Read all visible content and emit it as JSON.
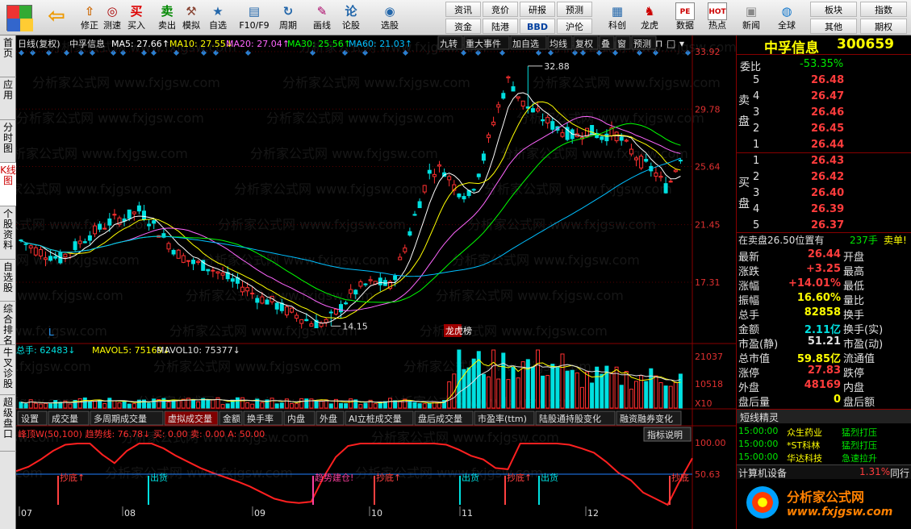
{
  "toolbar": {
    "buttons": [
      {
        "name": "back-icon",
        "label": ""
      },
      {
        "name": "modify-icon",
        "label": "修正"
      },
      {
        "name": "speed-icon",
        "label": "测速"
      },
      {
        "name": "buy-icon",
        "label": "买入",
        "glyph": "买"
      },
      {
        "name": "sell-icon",
        "label": "卖出",
        "glyph": "卖"
      },
      {
        "name": "simulate-icon",
        "label": "模拟"
      },
      {
        "name": "watchlist-icon",
        "label": "自选"
      },
      {
        "name": "f10-icon",
        "label": "F10/F9"
      },
      {
        "name": "period-icon",
        "label": "周期"
      },
      {
        "name": "drawline-icon",
        "label": "画线"
      },
      {
        "name": "discuss-icon",
        "label": "论股"
      },
      {
        "name": "picker-icon",
        "label": "选股"
      }
    ],
    "mini": [
      "资讯",
      "资金",
      "竞价",
      "陆港",
      "研报",
      "BBD",
      "预测",
      "沪伦"
    ],
    "right_buttons": [
      {
        "name": "tech-icon",
        "label": "科创"
      },
      {
        "name": "dragon-icon",
        "label": "龙虎"
      },
      {
        "name": "data-icon",
        "label": "数据",
        "glyph": "PE"
      },
      {
        "name": "hot-icon",
        "label": "热点",
        "glyph": "HOT"
      },
      {
        "name": "news-icon",
        "label": "新闻"
      },
      {
        "name": "global-icon",
        "label": "全球"
      }
    ],
    "far_right": [
      "板块",
      "其他",
      "指数",
      "期权"
    ]
  },
  "left_tabs": [
    "首页",
    "应用",
    "分时图",
    "K线图",
    "个股资料",
    "自选股",
    "综合排名",
    "牛叉诊股",
    "超级盘口"
  ],
  "chart_header": {
    "period": "日线(复权)",
    "stock": "中孚信息",
    "ma": [
      {
        "label": "MA5: 27.66↑",
        "color": "#ffffff"
      },
      {
        "label": "MA10: 27.55↓",
        "color": "#ffff00"
      },
      {
        "label": "MA20: 27.04↑",
        "color": "#ff66ff"
      },
      {
        "label": "MA30: 25.56↑",
        "color": "#00ff00"
      },
      {
        "label": "MA60: 21.03↑",
        "color": "#00bfff"
      }
    ],
    "tools": [
      "九转",
      "重大事件",
      "加自选",
      "均线",
      "复权",
      "叠",
      "窗",
      "预测"
    ]
  },
  "price_axis": [
    "33.92",
    "29.78",
    "25.64",
    "21.45",
    "17.31"
  ],
  "annotations": {
    "high": "32.88",
    "low": "14.15",
    "lhb": "龙虎榜",
    "l_mark": "L"
  },
  "vol_header": {
    "total": "总手: 62483↓",
    "mavol5": "MAVOL5: 75169↓",
    "mavol10": "MAVOL10: 75377↓"
  },
  "vol_axis": [
    "21037",
    "10518",
    "X10"
  ],
  "sub_tabs": [
    "设置",
    "成交量",
    "多周期成交量",
    "虚拟成交量",
    "金额",
    "换手率",
    "内盘",
    "外盘",
    "AI立桩成交量",
    "盘后成交量",
    "市盈率(ttm)",
    "陆股通持股变化",
    "融资融券变化"
  ],
  "indicator": {
    "header": "峰顶W(50,100) 趋势线: 76.78↓ 买: 0.00 卖: 0.00 A: 50.00",
    "button": "指标说明",
    "axis": [
      "100.00",
      "50.63"
    ],
    "labels": [
      "抄底↑",
      "出货",
      "趋势建仓!",
      "抄底↑",
      "出货",
      "抄底↑",
      "出货",
      "抄底"
    ]
  },
  "months": [
    "07",
    "08",
    "09",
    "10",
    "11",
    "12"
  ],
  "right_panel": {
    "name": "中孚信息",
    "code": "300659",
    "weibi_label": "委比",
    "weibi": "-53.35%",
    "sell_label": "卖盘",
    "buy_label": "买盘",
    "asks": [
      {
        "lvl": "5",
        "p": "26.48"
      },
      {
        "lvl": "4",
        "p": "26.47"
      },
      {
        "lvl": "3",
        "p": "26.46"
      },
      {
        "lvl": "2",
        "p": "26.45"
      },
      {
        "lvl": "1",
        "p": "26.44"
      }
    ],
    "bids": [
      {
        "lvl": "1",
        "p": "26.43"
      },
      {
        "lvl": "2",
        "p": "26.42"
      },
      {
        "lvl": "3",
        "p": "26.40"
      },
      {
        "lvl": "4",
        "p": "26.39"
      },
      {
        "lvl": "5",
        "p": "26.37"
      }
    ],
    "note_a": "在卖盘26.50位置有",
    "note_b": "237手",
    "note_c": "卖单!",
    "quotes": [
      {
        "k1": "最新",
        "v1": "26.44",
        "k2": "开盘",
        "c": "red"
      },
      {
        "k1": "涨跌",
        "v1": "+3.25",
        "k2": "最高",
        "c": "red"
      },
      {
        "k1": "涨幅",
        "v1": "+14.01%",
        "k2": "最低",
        "c": "red"
      },
      {
        "k1": "振幅",
        "v1": "16.60%",
        "k2": "量比",
        "c": "yellow"
      },
      {
        "k1": "总手",
        "v1": "82858",
        "k2": "换手",
        "c": "yellow"
      },
      {
        "k1": "金额",
        "v1": "2.11亿",
        "k2": "换手(实)",
        "c": "cyan"
      },
      {
        "k1": "市盈(静)",
        "v1": "51.21",
        "k2": "市盈(动)",
        "c": "white"
      },
      {
        "k1": "总市值",
        "v1": "59.85亿",
        "k2": "流通值",
        "c": "yellow"
      },
      {
        "k1": "涨停",
        "v1": "27.83",
        "k2": "跌停",
        "c": "red"
      },
      {
        "k1": "外盘",
        "v1": "48169",
        "k2": "内盘",
        "c": "red"
      },
      {
        "k1": "盘后量",
        "v1": "0",
        "k2": "盘后额",
        "c": "yellow"
      }
    ],
    "elf_title": "短线精灵",
    "elf": [
      {
        "t": "15:00:00",
        "n": "众生药业",
        "a": "猛烈打压"
      },
      {
        "t": "15:00:00",
        "n": "*ST科林",
        "a": "猛烈打压"
      },
      {
        "t": "15:00:00",
        "n": "华达科技",
        "a": "急速拉升"
      }
    ],
    "sector": {
      "n": "计算机设备",
      "v": "1.31%",
      "t": "同行"
    },
    "logo_text": "分析家公式网",
    "logo_url": "www.fxjgsw.com"
  },
  "watermark": "分析家公式网 www.fxjgsw.com"
}
